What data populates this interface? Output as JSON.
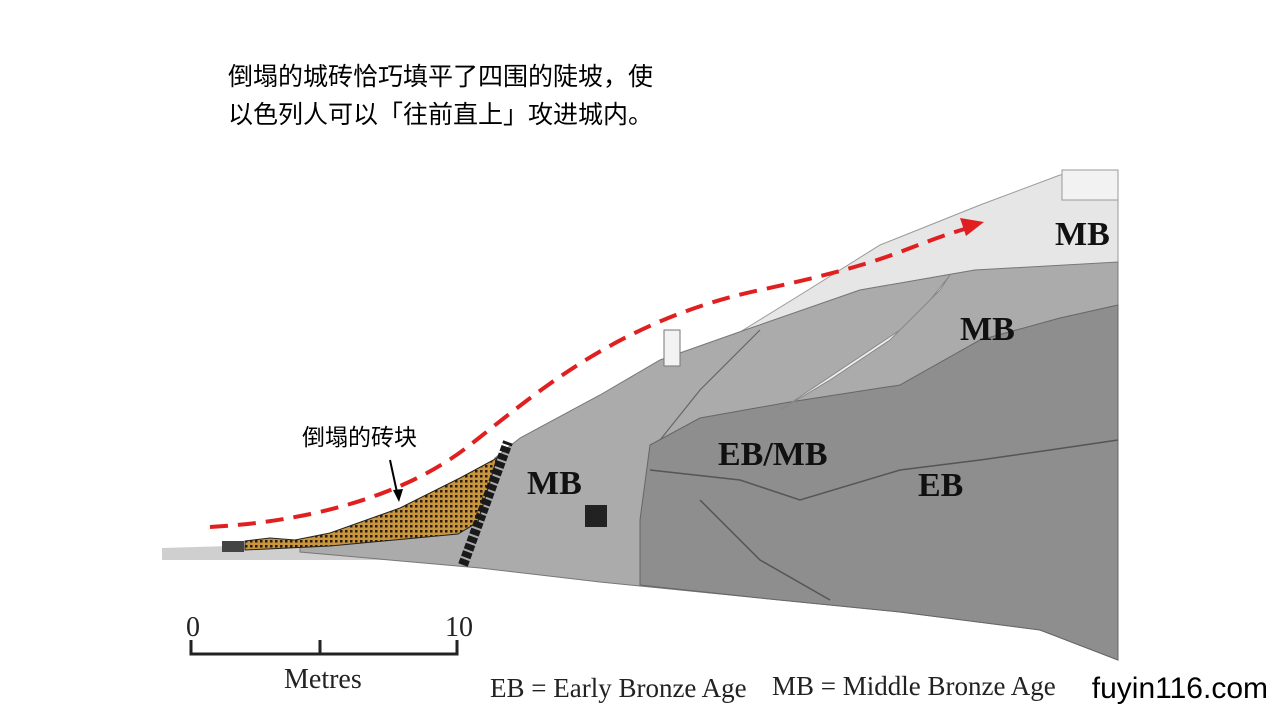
{
  "caption": {
    "line1": "倒塌的城砖恰巧填平了四围的陡坡，使",
    "line2": "以色列人可以「往前直上」攻进城内。"
  },
  "diagram": {
    "labels": {
      "mb_top": "MB",
      "mb_upper": "MB",
      "mb_lower": "MB",
      "eb_mb": "EB/MB",
      "eb": "EB"
    },
    "annotation": "倒塌的砖块",
    "scale": {
      "start": "0",
      "end": "10",
      "unit": "Metres"
    },
    "legend": {
      "eb": "EB = Early Bronze Age",
      "mb": "MB = Middle Bronze Age"
    },
    "colors": {
      "path_arrow": "#e02020",
      "collapsed_bricks": "#c8963e",
      "layer_light": "#e6e6e6",
      "layer_mid": "#ababab",
      "layer_dark": "#8e8e8e"
    }
  },
  "watermark": "fuyin116.com"
}
